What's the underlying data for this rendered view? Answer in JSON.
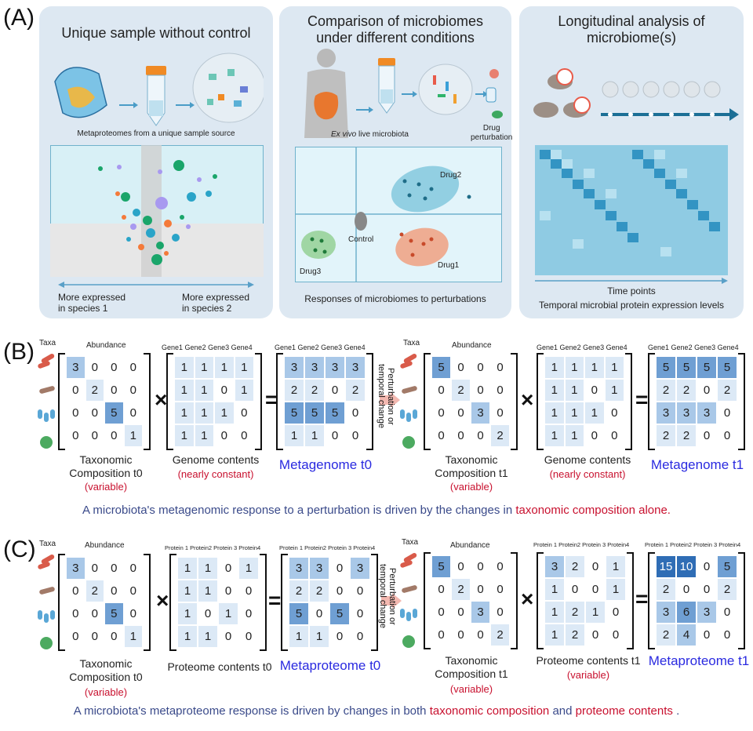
{
  "panel_labels": {
    "a": "(A)",
    "b": "(B)",
    "c": "(C)"
  },
  "panel_a": {
    "card1": {
      "title": "Unique sample without control",
      "caption": "Metaproteomes from a unique sample source",
      "left_label": "More expressed\nin species 1",
      "right_label": "More expressed\nin species 2"
    },
    "card2": {
      "title": "Comparison of microbiomes\nunder different conditions",
      "caption_italic": "Ex vivo",
      "caption_rest": " live microbiota",
      "drug_label": "Drug\nperturbation",
      "cluster_labels": [
        "Drug2",
        "Control",
        "Drug1",
        "Drug3"
      ],
      "footer": "Responses of microbiomes to perturbations"
    },
    "card3": {
      "title": "Longitudinal analysis of\nmicrobiome(s)",
      "axis_label": "Time points",
      "footer": "Temporal microbial protein expression levels"
    }
  },
  "panel_b": {
    "left": {
      "taxa_label": "Taxa",
      "abundance_label": "Abundance",
      "taxonomic_matrix": [
        [
          "3",
          "0",
          "0",
          "0"
        ],
        [
          "0",
          "2",
          "0",
          "0"
        ],
        [
          "0",
          "0",
          "5",
          "0"
        ],
        [
          "0",
          "0",
          "0",
          "1"
        ]
      ],
      "gene_headers": [
        "Gene1",
        "Gene2",
        "Gene3",
        "Gene4"
      ],
      "genome_matrix": [
        [
          "1",
          "1",
          "1",
          "1"
        ],
        [
          "1",
          "1",
          "0",
          "1"
        ],
        [
          "1",
          "1",
          "1",
          "0"
        ],
        [
          "1",
          "1",
          "0",
          "0"
        ]
      ],
      "meta_headers": [
        "Gene1",
        "Gene2",
        "Gene3",
        "Gene4"
      ],
      "metagenome_matrix": [
        [
          "3",
          "3",
          "3",
          "3"
        ],
        [
          "2",
          "2",
          "0",
          "2"
        ],
        [
          "5",
          "5",
          "5",
          "0"
        ],
        [
          "1",
          "1",
          "0",
          "0"
        ]
      ],
      "tax_caption": "Taxonomic\nComposition t0",
      "tax_var": "(variable)",
      "genome_caption": "Genome contents",
      "genome_var": "(nearly constant)",
      "meta_caption": "Metagenome t0"
    },
    "perturbation": "Perturbation or\ntemporal change",
    "right": {
      "taxa_label": "Taxa",
      "abundance_label": "Abundance",
      "taxonomic_matrix": [
        [
          "5",
          "0",
          "0",
          "0"
        ],
        [
          "0",
          "2",
          "0",
          "0"
        ],
        [
          "0",
          "0",
          "3",
          "0"
        ],
        [
          "0",
          "0",
          "0",
          "2"
        ]
      ],
      "gene_headers": [
        "Gene1",
        "Gene2",
        "Gene3",
        "Gene4"
      ],
      "genome_matrix": [
        [
          "1",
          "1",
          "1",
          "1"
        ],
        [
          "1",
          "1",
          "0",
          "1"
        ],
        [
          "1",
          "1",
          "1",
          "0"
        ],
        [
          "1",
          "1",
          "0",
          "0"
        ]
      ],
      "meta_headers": [
        "Gene1",
        "Gene2",
        "Gene3",
        "Gene4"
      ],
      "metagenome_matrix": [
        [
          "5",
          "5",
          "5",
          "5"
        ],
        [
          "2",
          "2",
          "0",
          "2"
        ],
        [
          "3",
          "3",
          "3",
          "0"
        ],
        [
          "2",
          "2",
          "0",
          "0"
        ]
      ],
      "tax_caption": "Taxonomic\nComposition t1",
      "tax_var": "(variable)",
      "genome_caption": "Genome contents",
      "genome_var": "(nearly constant)",
      "meta_caption": "Metagenome t1"
    },
    "sentence_start": "A microbiota's metagenomic response to a perturbation is driven by the changes in ",
    "sentence_red": "taxonomic composition alone."
  },
  "panel_c": {
    "left": {
      "taxa_label": "Taxa",
      "abundance_label": "Abundance",
      "taxonomic_matrix": [
        [
          "3",
          "0",
          "0",
          "0"
        ],
        [
          "0",
          "2",
          "0",
          "0"
        ],
        [
          "0",
          "0",
          "5",
          "0"
        ],
        [
          "0",
          "0",
          "0",
          "1"
        ]
      ],
      "protein_headers": [
        "Protein 1",
        "Protein2",
        "Protein 3",
        "Protein4"
      ],
      "proteome_matrix": [
        [
          "1",
          "1",
          "0",
          "1"
        ],
        [
          "1",
          "1",
          "0",
          "0"
        ],
        [
          "1",
          "0",
          "1",
          "0"
        ],
        [
          "1",
          "1",
          "0",
          "0"
        ]
      ],
      "meta_headers": [
        "Protein 1",
        "Protein2",
        "Protein 3",
        "Protein4"
      ],
      "metaproteome_matrix": [
        [
          "3",
          "3",
          "0",
          "3"
        ],
        [
          "2",
          "2",
          "0",
          "0"
        ],
        [
          "5",
          "0",
          "5",
          "0"
        ],
        [
          "1",
          "1",
          "0",
          "0"
        ]
      ],
      "tax_caption": "Taxonomic\nComposition t0",
      "tax_var": "(variable)",
      "proteome_caption": "Proteome contents t0",
      "meta_caption": "Metaproteome t0"
    },
    "perturbation": "Perturbation or\ntemporal change",
    "right": {
      "taxa_label": "Taxa",
      "abundance_label": "Abundance",
      "taxonomic_matrix": [
        [
          "5",
          "0",
          "0",
          "0"
        ],
        [
          "0",
          "2",
          "0",
          "0"
        ],
        [
          "0",
          "0",
          "3",
          "0"
        ],
        [
          "0",
          "0",
          "0",
          "2"
        ]
      ],
      "protein_headers": [
        "Protein 1",
        "Protein2",
        "Protein 3",
        "Protein4"
      ],
      "proteome_matrix": [
        [
          "3",
          "2",
          "0",
          "1"
        ],
        [
          "1",
          "0",
          "0",
          "1"
        ],
        [
          "1",
          "2",
          "1",
          "0"
        ],
        [
          "1",
          "2",
          "0",
          "0"
        ]
      ],
      "meta_headers": [
        "Protein 1",
        "Protein2",
        "Protein 3",
        "Protein4"
      ],
      "metaproteome_matrix": [
        [
          "15",
          "10",
          "0",
          "5"
        ],
        [
          "2",
          "0",
          "0",
          "2"
        ],
        [
          "3",
          "6",
          "3",
          "0"
        ],
        [
          "2",
          "4",
          "0",
          "0"
        ]
      ],
      "tax_caption": "Taxonomic\nComposition t1",
      "tax_var": "(variable)",
      "proteome_caption": "Proteome contents t1",
      "proteome_var": "(variable)",
      "meta_caption": "Metaproteome t1"
    },
    "sentence_start": "A microbiota's metaproteome response is driven by changes in both ",
    "sentence_red1": "taxonomic composition",
    "sentence_mid": " and ",
    "sentence_red2": "proteome contents",
    "sentence_end": " ."
  },
  "colors": {
    "card_bg": "#dde8f2",
    "cell_light": "#dce9f6",
    "cell_mid": "#a9c8e8",
    "cell_dark": "#6f9fd3",
    "cell_darkest": "#2f6db5",
    "red": "#c8102e",
    "blue": "#2a2ae0"
  }
}
